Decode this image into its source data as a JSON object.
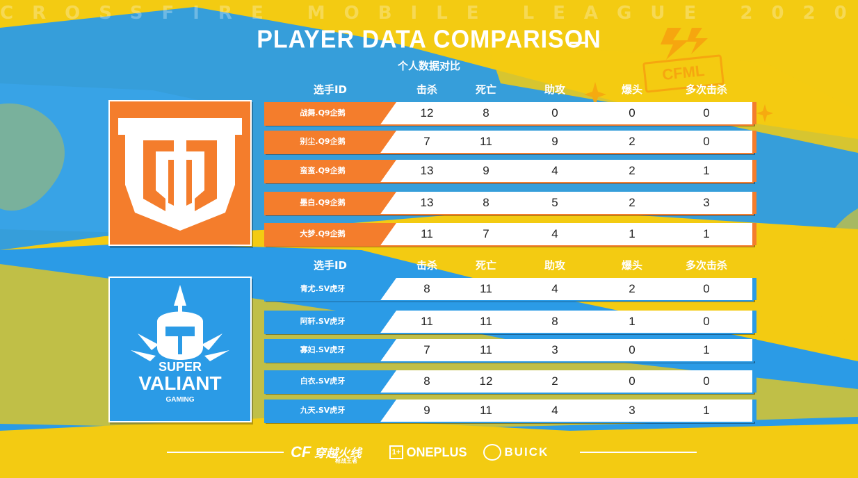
{
  "header": {
    "banner": "CROSSFIRE MOBILE LEAGUE 2020",
    "title": "PLAYER DATA COMPARISON",
    "subtitle": "个人数据对比",
    "cfml_badge": "CFML"
  },
  "columns": [
    "选手ID",
    "击杀",
    "死亡",
    "助攻",
    "爆头",
    "多次击杀"
  ],
  "colors": {
    "orange": "#f47d2c",
    "blue": "#2b9be6",
    "yellow": "#f3cb12"
  },
  "teams": [
    {
      "logo_icon": "q9-team-logo-icon",
      "players": [
        {
          "id": "战舞.Q9企鹅",
          "kills": "12",
          "deaths": "8",
          "assists": "0",
          "headshots": "0",
          "multikills": "0"
        },
        {
          "id": "别尘.Q9企鹅",
          "kills": "7",
          "deaths": "11",
          "assists": "9",
          "headshots": "2",
          "multikills": "0"
        },
        {
          "id": "蛮蛮.Q9企鹅",
          "kills": "13",
          "deaths": "9",
          "assists": "4",
          "headshots": "2",
          "multikills": "1"
        },
        {
          "id": "墨白.Q9企鹅",
          "kills": "13",
          "deaths": "8",
          "assists": "5",
          "headshots": "2",
          "multikills": "3"
        },
        {
          "id": "大梦.Q9企鹅",
          "kills": "11",
          "deaths": "7",
          "assists": "4",
          "headshots": "1",
          "multikills": "1"
        }
      ]
    },
    {
      "logo_icon": "super-valiant-logo-icon",
      "logo_text": {
        "line1": "SUPER",
        "line2": "VALIANT",
        "line3": "GAMING"
      },
      "players": [
        {
          "id": "青尤.SV虎牙",
          "kills": "8",
          "deaths": "11",
          "assists": "4",
          "headshots": "2",
          "multikills": "0"
        },
        {
          "id": "阿轩.SV虎牙",
          "kills": "11",
          "deaths": "11",
          "assists": "8",
          "headshots": "1",
          "multikills": "0"
        },
        {
          "id": "寡妇.SV虎牙",
          "kills": "7",
          "deaths": "11",
          "assists": "3",
          "headshots": "0",
          "multikills": "1"
        },
        {
          "id": "白衣.SV虎牙",
          "kills": "8",
          "deaths": "12",
          "assists": "2",
          "headshots": "0",
          "multikills": "0"
        },
        {
          "id": "九天.SV虎牙",
          "kills": "9",
          "deaths": "11",
          "assists": "4",
          "headshots": "3",
          "multikills": "1"
        }
      ]
    }
  ],
  "footer": {
    "cf_logo_text": "穿越火线",
    "cf_logo_sub": "枪战王者",
    "oneplus": "ONEPLUS",
    "buick": "BUICK"
  }
}
